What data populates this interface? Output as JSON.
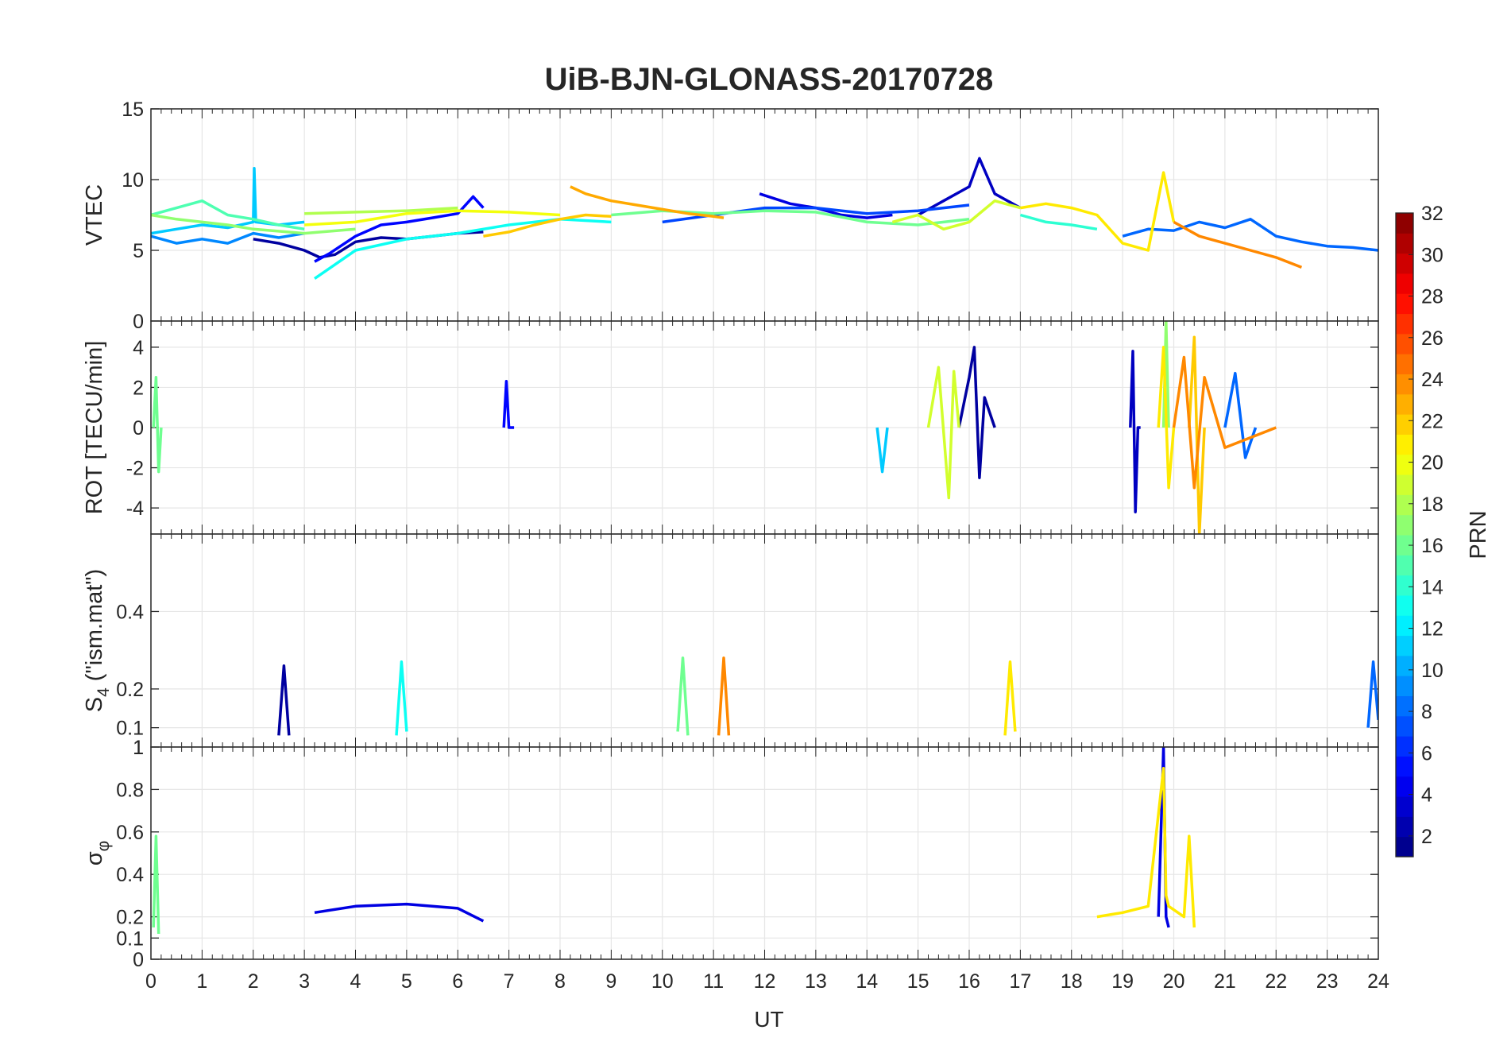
{
  "title": "UiB-BJN-GLONASS-20170728",
  "x_axis": {
    "label": "UT",
    "ticks": [
      "0",
      "1",
      "2",
      "3",
      "4",
      "5",
      "6",
      "7",
      "8",
      "9",
      "10",
      "11",
      "12",
      "13",
      "14",
      "15",
      "16",
      "17",
      "18",
      "19",
      "20",
      "21",
      "22",
      "23",
      "24"
    ]
  },
  "colorbar": {
    "label": "PRN",
    "colormap": "jet",
    "range": [
      1,
      32
    ],
    "ticks": [
      "2",
      "4",
      "6",
      "8",
      "10",
      "12",
      "14",
      "16",
      "18",
      "20",
      "22",
      "24",
      "26",
      "28",
      "30",
      "32"
    ]
  },
  "panels": [
    {
      "ylabel": "VTEC",
      "ylim": [
        0,
        15
      ],
      "yticks": [
        "0",
        "5",
        "10",
        "15"
      ]
    },
    {
      "ylabel": "ROT [TECU/min]",
      "ylim": [
        -5.3,
        5.3
      ],
      "yticks": [
        "-4",
        "-2",
        "0",
        "2",
        "4"
      ]
    },
    {
      "ylabel": "S",
      "ylabel_sub": "4",
      "ylabel_suffix": "(\"ism.mat\")",
      "ylim": [
        0.05,
        0.6
      ],
      "yticks": [
        "0.1",
        "0.2",
        "0.4"
      ]
    },
    {
      "ylabel": "σ",
      "ylabel_sub": "φ",
      "ylim": [
        0,
        1
      ],
      "yticks": [
        "0",
        "0.1",
        "0.2",
        "0.4",
        "0.6",
        "0.8",
        "1"
      ],
      "top_overlap_label": "1"
    }
  ],
  "chart_data": [
    {
      "type": "line",
      "panel": "VTEC",
      "xlim": [
        0,
        24
      ],
      "ylim": [
        0,
        15
      ],
      "xlabel": "UT",
      "ylabel": "VTEC",
      "title": "UiB-BJN-GLONASS-20170728",
      "grid": true,
      "series": [
        {
          "prn": 2,
          "x": [
            2,
            2.5,
            3,
            3.3,
            3.6,
            4,
            4.5,
            5,
            5.5,
            6,
            6.5
          ],
          "y": [
            5.8,
            5.5,
            5.0,
            4.5,
            4.7,
            5.6,
            5.9,
            5.8,
            6.0,
            6.2,
            6.3
          ]
        },
        {
          "prn": 3,
          "x": [
            15,
            15.5,
            16,
            16.2,
            16.5,
            17
          ],
          "y": [
            7.5,
            8.5,
            9.5,
            11.5,
            9.0,
            8.0
          ]
        },
        {
          "prn": 4,
          "x": [
            11.9,
            12.5,
            13,
            13.5,
            14,
            14.5
          ],
          "y": [
            9.0,
            8.3,
            8.0,
            7.5,
            7.3,
            7.5
          ]
        },
        {
          "prn": 5,
          "x": [
            3.2,
            3.5,
            4,
            4.5,
            5,
            5.5,
            6,
            6.3,
            6.5
          ],
          "y": [
            4.2,
            4.8,
            6.0,
            6.8,
            7.0,
            7.3,
            7.6,
            8.8,
            8.0
          ]
        },
        {
          "prn": 7,
          "x": [
            10,
            11,
            12,
            13,
            14,
            15,
            16
          ],
          "y": [
            7.0,
            7.5,
            8.0,
            8.0,
            7.6,
            7.8,
            8.2
          ]
        },
        {
          "prn": 8,
          "x": [
            19,
            19.5,
            20,
            20.5,
            21,
            21.5,
            22,
            22.5,
            23,
            23.5,
            24
          ],
          "y": [
            6.0,
            6.5,
            6.4,
            7.0,
            6.6,
            7.2,
            6.0,
            5.6,
            5.3,
            5.2,
            5.0
          ]
        },
        {
          "prn": 9,
          "x": [
            0,
            0.5,
            1,
            1.5,
            2,
            2.5,
            3
          ],
          "y": [
            6.0,
            5.5,
            5.8,
            5.5,
            6.2,
            5.9,
            6.2
          ]
        },
        {
          "prn": 11,
          "x": [
            0,
            0.5,
            1,
            1.5,
            2,
            2.02,
            2.05,
            2.5,
            3
          ],
          "y": [
            6.2,
            6.5,
            6.8,
            6.6,
            7.0,
            10.8,
            7.0,
            6.8,
            7.0
          ]
        },
        {
          "prn": 13,
          "x": [
            3.2,
            3.6,
            4,
            5,
            6,
            7,
            8,
            9
          ],
          "y": [
            3.0,
            4.0,
            5.0,
            5.8,
            6.2,
            6.8,
            7.2,
            7.0
          ]
        },
        {
          "prn": 14,
          "x": [
            17,
            17.5,
            18,
            18.5
          ],
          "y": [
            7.5,
            7.0,
            6.8,
            6.5
          ]
        },
        {
          "prn": 15,
          "x": [
            0,
            0.5,
            1,
            1.5,
            2,
            2.5,
            3
          ],
          "y": [
            7.5,
            8.0,
            8.5,
            7.5,
            7.2,
            6.8,
            6.5
          ]
        },
        {
          "prn": 16,
          "x": [
            9,
            10,
            11,
            12,
            13,
            14,
            15,
            16
          ],
          "y": [
            7.5,
            7.8,
            7.6,
            7.8,
            7.7,
            7.0,
            6.8,
            7.2
          ]
        },
        {
          "prn": 17,
          "x": [
            0,
            0.5,
            1,
            1.5,
            2,
            3,
            4
          ],
          "y": [
            7.5,
            7.2,
            7.0,
            6.8,
            6.5,
            6.2,
            6.5
          ]
        },
        {
          "prn": 18,
          "x": [
            3,
            4,
            5,
            6
          ],
          "y": [
            7.6,
            7.7,
            7.8,
            8.0
          ]
        },
        {
          "prn": 19,
          "x": [
            14.5,
            15,
            15.5,
            16,
            16.5,
            17
          ],
          "y": [
            7.0,
            7.5,
            6.5,
            7.0,
            8.5,
            8.0
          ]
        },
        {
          "prn": 20,
          "x": [
            3,
            4,
            5,
            6,
            7,
            8
          ],
          "y": [
            6.8,
            7.0,
            7.6,
            7.8,
            7.7,
            7.5
          ]
        },
        {
          "prn": 21,
          "x": [
            17,
            17.5,
            18,
            18.5,
            19,
            19.5,
            19.8,
            20
          ],
          "y": [
            8.0,
            8.3,
            8.0,
            7.5,
            5.5,
            5.0,
            10.5,
            7.0
          ]
        },
        {
          "prn": 22,
          "x": [
            6.5,
            7,
            7.5,
            8,
            8.5,
            9
          ],
          "y": [
            6.0,
            6.3,
            6.8,
            7.2,
            7.5,
            7.4
          ]
        },
        {
          "prn": 23,
          "x": [
            8.2,
            8.5,
            9,
            9.5,
            10,
            10.5,
            11,
            11.2
          ],
          "y": [
            9.5,
            9.0,
            8.5,
            8.2,
            7.9,
            7.6,
            7.4,
            7.3
          ]
        },
        {
          "prn": 24,
          "x": [
            20,
            20.5,
            21,
            21.5,
            22,
            22.5
          ],
          "y": [
            7.0,
            6.0,
            5.5,
            5.0,
            4.5,
            3.8
          ]
        }
      ]
    },
    {
      "type": "line",
      "panel": "ROT [TECU/min]",
      "xlim": [
        0,
        24
      ],
      "ylim": [
        -5.3,
        5.3
      ],
      "xlabel": "UT",
      "ylabel": "ROT [TECU/min]",
      "grid": true,
      "series": [
        {
          "prn": 2,
          "x": [
            15.8,
            16.0,
            16.1,
            16.2,
            16.3,
            16.5
          ],
          "y": [
            0,
            2.5,
            4.0,
            -2.5,
            1.5,
            0
          ]
        },
        {
          "prn": 3,
          "x": [
            19.15,
            19.2,
            19.25,
            19.3,
            19.35
          ],
          "y": [
            0,
            3.8,
            -4.2,
            0,
            0
          ]
        },
        {
          "prn": 5,
          "x": [
            6.9,
            6.95,
            7.0,
            7.1
          ],
          "y": [
            0,
            2.3,
            0,
            0
          ]
        },
        {
          "prn": 8,
          "x": [
            21.0,
            21.2,
            21.4,
            21.6
          ],
          "y": [
            0,
            2.7,
            -1.5,
            0
          ]
        },
        {
          "prn": 11,
          "x": [
            14.2,
            14.3,
            14.4
          ],
          "y": [
            0,
            -2.2,
            0
          ]
        },
        {
          "prn": 16,
          "x": [
            0.05,
            0.1,
            0.15,
            0.2
          ],
          "y": [
            0,
            2.5,
            -2.2,
            0
          ]
        },
        {
          "prn": 17,
          "x": [
            19.8,
            19.85,
            19.9
          ],
          "y": [
            0,
            5.3,
            0
          ]
        },
        {
          "prn": 19,
          "x": [
            15.2,
            15.4,
            15.6,
            15.7,
            15.8
          ],
          "y": [
            0,
            3.0,
            -3.5,
            2.8,
            0
          ]
        },
        {
          "prn": 21,
          "x": [
            19.7,
            19.8,
            19.9,
            20.0
          ],
          "y": [
            0,
            4.0,
            -3.0,
            0
          ]
        },
        {
          "prn": 22,
          "x": [
            20.3,
            20.4,
            20.5,
            20.6
          ],
          "y": [
            0,
            4.5,
            -5.3,
            0
          ]
        },
        {
          "prn": 24,
          "x": [
            20.0,
            20.2,
            20.4,
            20.6,
            21.0,
            22.0
          ],
          "y": [
            0,
            3.5,
            -3.0,
            2.5,
            -1.0,
            0
          ]
        }
      ]
    },
    {
      "type": "line",
      "panel": "S4 (\"ism.mat\")",
      "xlim": [
        0,
        24
      ],
      "ylim": [
        0.05,
        0.6
      ],
      "xlabel": "UT",
      "ylabel": "S4 (\"ism.mat\")",
      "grid": true,
      "series": [
        {
          "prn": 2,
          "x": [
            2.5,
            2.6,
            2.7
          ],
          "y": [
            0.08,
            0.26,
            0.08
          ]
        },
        {
          "prn": 8,
          "x": [
            23.8,
            23.9,
            24
          ],
          "y": [
            0.1,
            0.27,
            0.12
          ]
        },
        {
          "prn": 13,
          "x": [
            4.8,
            4.9,
            5.0
          ],
          "y": [
            0.08,
            0.27,
            0.09
          ]
        },
        {
          "prn": 16,
          "x": [
            10.3,
            10.4,
            10.5
          ],
          "y": [
            0.09,
            0.28,
            0.08
          ]
        },
        {
          "prn": 21,
          "x": [
            16.7,
            16.8,
            16.9
          ],
          "y": [
            0.08,
            0.27,
            0.09
          ]
        },
        {
          "prn": 24,
          "x": [
            11.1,
            11.2,
            11.3
          ],
          "y": [
            0.08,
            0.28,
            0.08
          ]
        }
      ]
    },
    {
      "type": "line",
      "panel": "σφ",
      "xlim": [
        0,
        24
      ],
      "ylim": [
        0,
        1
      ],
      "xlabel": "UT",
      "ylabel": "σφ",
      "grid": true,
      "series": [
        {
          "prn": 4,
          "x": [
            19.7,
            19.8,
            19.85,
            19.9
          ],
          "y": [
            0.2,
            1.0,
            0.2,
            0.15
          ]
        },
        {
          "prn": 4,
          "x": [
            3.2,
            4,
            5,
            6,
            6.5
          ],
          "y": [
            0.22,
            0.25,
            0.26,
            0.24,
            0.18
          ]
        },
        {
          "prn": 16,
          "x": [
            0.05,
            0.1,
            0.15
          ],
          "y": [
            0.15,
            0.58,
            0.12
          ]
        },
        {
          "prn": 21,
          "x": [
            18.5,
            19,
            19.5,
            19.8,
            19.85,
            19.9,
            20.2,
            20.3,
            20.4
          ],
          "y": [
            0.2,
            0.22,
            0.25,
            0.9,
            0.3,
            0.25,
            0.2,
            0.58,
            0.15
          ]
        }
      ]
    }
  ]
}
